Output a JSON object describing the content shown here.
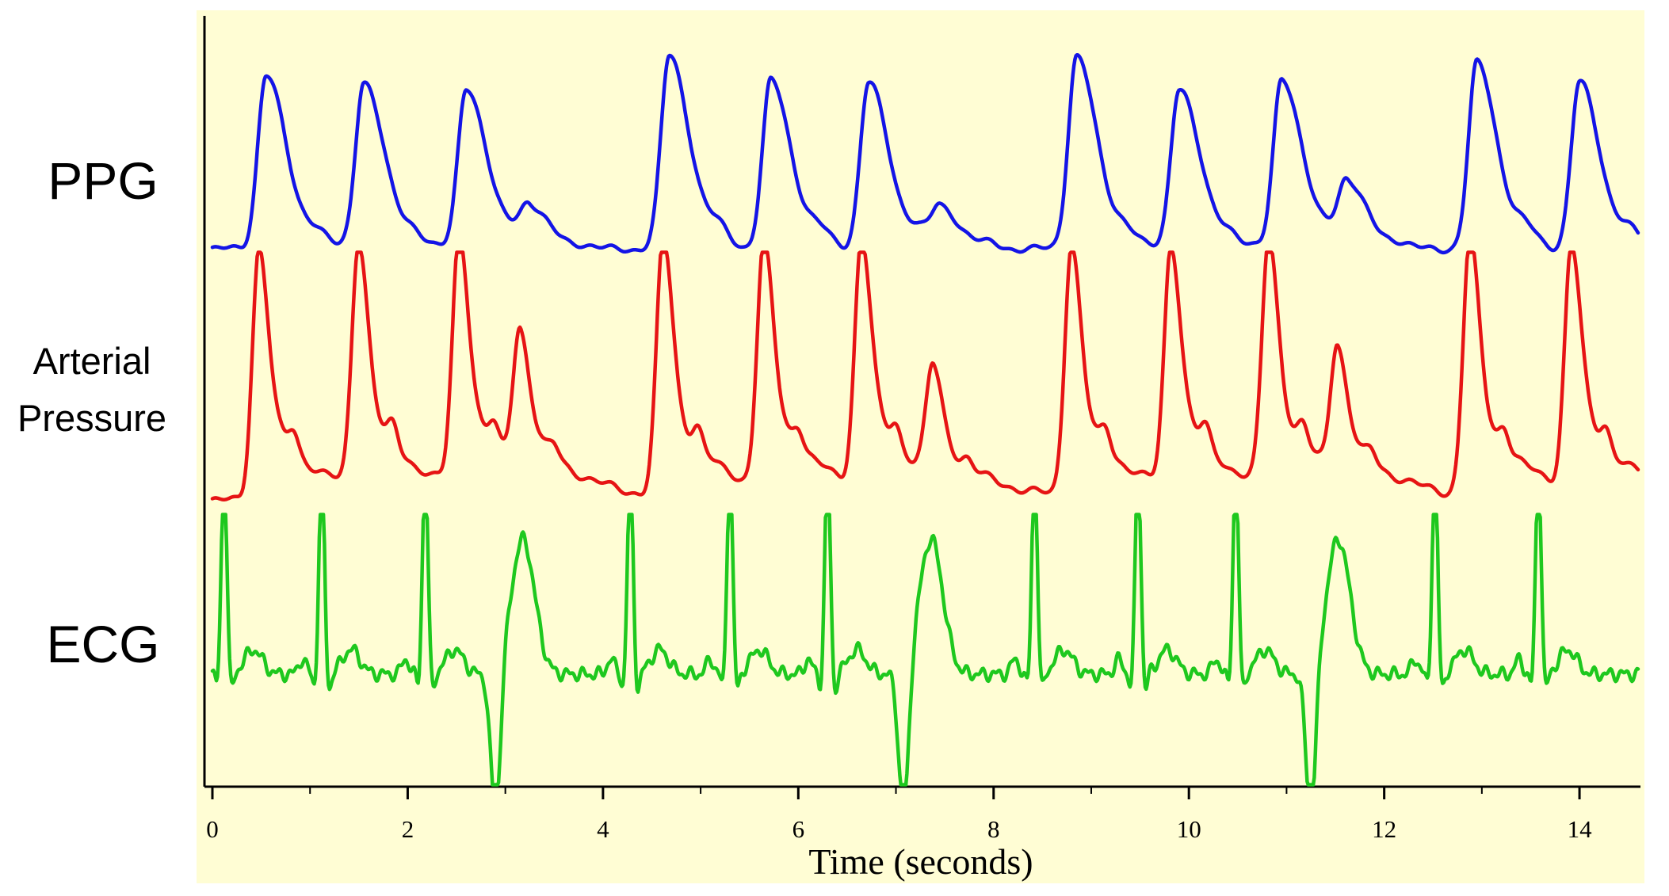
{
  "chart_data": {
    "type": "line",
    "title": "",
    "xlabel": "Time (seconds)",
    "ylabel": "",
    "xlim": [
      0,
      14.6
    ],
    "xticks": [
      0,
      2,
      4,
      6,
      8,
      10,
      12,
      14
    ],
    "xtick_labels": [
      "0",
      "2",
      "4",
      "6",
      "8",
      "10",
      "12",
      "14"
    ],
    "background": "#FFFDD4",
    "grid": false,
    "series": [
      {
        "name": "PPG",
        "color": "#1414E6",
        "label_lines": [
          "PPG"
        ],
        "baseline": 0.08,
        "beats": [
          {
            "t": 0.55,
            "amp": 0.9
          },
          {
            "t": 1.55,
            "amp": 0.87
          },
          {
            "t": 2.6,
            "amp": 0.84
          },
          {
            "t": 3.25,
            "amp": 0.2
          },
          {
            "t": 4.68,
            "amp": 1.0
          },
          {
            "t": 5.72,
            "amp": 0.87
          },
          {
            "t": 6.72,
            "amp": 0.86
          },
          {
            "t": 7.45,
            "amp": 0.21
          },
          {
            "t": 8.85,
            "amp": 1.0
          },
          {
            "t": 9.9,
            "amp": 0.84
          },
          {
            "t": 10.95,
            "amp": 0.89
          },
          {
            "t": 11.62,
            "amp": 0.33
          },
          {
            "t": 12.95,
            "amp": 0.96
          },
          {
            "t": 14.0,
            "amp": 0.86
          }
        ]
      },
      {
        "name": "Arterial Pressure",
        "color": "#E61414",
        "label_lines": [
          "Arterial",
          "Pressure"
        ],
        "baseline": 0.1,
        "beats": [
          {
            "t": 0.48,
            "amp": 0.98
          },
          {
            "t": 1.5,
            "amp": 0.96
          },
          {
            "t": 2.53,
            "amp": 0.98
          },
          {
            "t": 3.15,
            "amp": 0.54
          },
          {
            "t": 4.62,
            "amp": 1.0
          },
          {
            "t": 5.65,
            "amp": 0.95
          },
          {
            "t": 6.65,
            "amp": 0.96
          },
          {
            "t": 7.38,
            "amp": 0.42
          },
          {
            "t": 8.8,
            "amp": 0.98
          },
          {
            "t": 9.82,
            "amp": 0.94
          },
          {
            "t": 10.82,
            "amp": 0.96
          },
          {
            "t": 11.52,
            "amp": 0.5
          },
          {
            "t": 12.88,
            "amp": 1.0
          },
          {
            "t": 13.92,
            "amp": 0.94
          }
        ]
      },
      {
        "name": "ECG",
        "color": "#1EC81E",
        "label_lines": [
          "ECG"
        ],
        "baseline": 0.4,
        "qrs": [
          0.12,
          1.12,
          2.18,
          4.28,
          5.3,
          6.3,
          8.42,
          9.48,
          10.48,
          12.52,
          13.58
        ],
        "ectopic": [
          2.9,
          7.08,
          11.25
        ]
      }
    ]
  }
}
